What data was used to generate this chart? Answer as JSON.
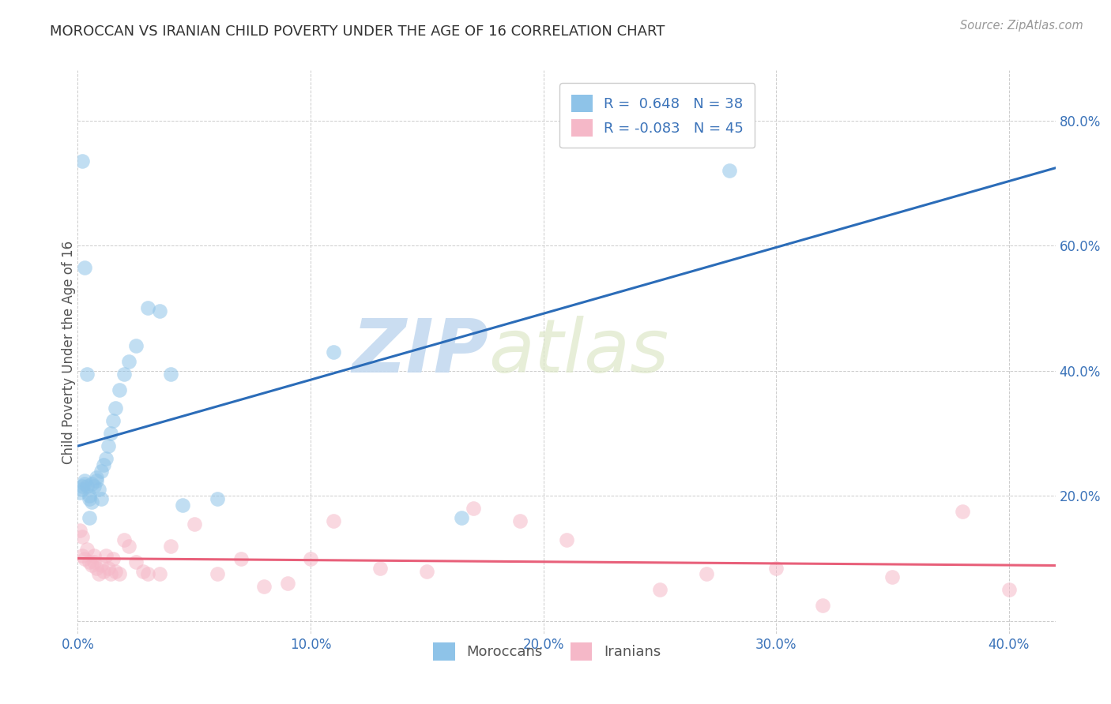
{
  "title": "MOROCCAN VS IRANIAN CHILD POVERTY UNDER THE AGE OF 16 CORRELATION CHART",
  "source": "Source: ZipAtlas.com",
  "ylabel": "Child Poverty Under the Age of 16",
  "xlim": [
    0.0,
    0.42
  ],
  "ylim": [
    -0.02,
    0.88
  ],
  "x_ticks": [
    0.0,
    0.1,
    0.2,
    0.3,
    0.4
  ],
  "x_tick_labels": [
    "0.0%",
    "10.0%",
    "20.0%",
    "30.0%",
    "40.0%"
  ],
  "y_ticks": [
    0.0,
    0.2,
    0.4,
    0.6,
    0.8
  ],
  "y_tick_labels": [
    "",
    "20.0%",
    "40.0%",
    "60.0%",
    "80.0%"
  ],
  "moroccan_R": 0.648,
  "moroccan_N": 38,
  "iranian_R": -0.083,
  "iranian_N": 45,
  "moroccan_color": "#8ec3e8",
  "iranian_color": "#f5b8c8",
  "moroccan_line_color": "#2b6cb8",
  "iranian_line_color": "#e8607a",
  "moroccan_x": [
    0.001,
    0.002,
    0.002,
    0.003,
    0.003,
    0.004,
    0.005,
    0.005,
    0.006,
    0.006,
    0.007,
    0.008,
    0.008,
    0.009,
    0.01,
    0.01,
    0.011,
    0.012,
    0.013,
    0.014,
    0.015,
    0.016,
    0.018,
    0.02,
    0.022,
    0.025,
    0.03,
    0.035,
    0.04,
    0.045,
    0.002,
    0.003,
    0.004,
    0.005,
    0.28,
    0.11,
    0.165,
    0.06
  ],
  "moroccan_y": [
    0.205,
    0.215,
    0.21,
    0.225,
    0.22,
    0.215,
    0.2,
    0.195,
    0.19,
    0.22,
    0.215,
    0.23,
    0.225,
    0.21,
    0.24,
    0.195,
    0.25,
    0.26,
    0.28,
    0.3,
    0.32,
    0.34,
    0.37,
    0.395,
    0.415,
    0.44,
    0.5,
    0.495,
    0.395,
    0.185,
    0.735,
    0.565,
    0.395,
    0.165,
    0.72,
    0.43,
    0.165,
    0.195
  ],
  "iranian_x": [
    0.001,
    0.002,
    0.002,
    0.003,
    0.004,
    0.005,
    0.006,
    0.007,
    0.007,
    0.008,
    0.009,
    0.01,
    0.011,
    0.012,
    0.013,
    0.014,
    0.015,
    0.016,
    0.018,
    0.02,
    0.022,
    0.025,
    0.028,
    0.03,
    0.035,
    0.04,
    0.05,
    0.06,
    0.07,
    0.08,
    0.09,
    0.1,
    0.11,
    0.13,
    0.15,
    0.17,
    0.19,
    0.21,
    0.25,
    0.27,
    0.3,
    0.32,
    0.35,
    0.38,
    0.4
  ],
  "iranian_y": [
    0.145,
    0.135,
    0.105,
    0.1,
    0.115,
    0.095,
    0.09,
    0.095,
    0.105,
    0.085,
    0.075,
    0.09,
    0.08,
    0.105,
    0.085,
    0.075,
    0.1,
    0.08,
    0.075,
    0.13,
    0.12,
    0.095,
    0.08,
    0.075,
    0.075,
    0.12,
    0.155,
    0.075,
    0.1,
    0.055,
    0.06,
    0.1,
    0.16,
    0.085,
    0.08,
    0.18,
    0.16,
    0.13,
    0.05,
    0.075,
    0.085,
    0.025,
    0.07,
    0.175,
    0.05
  ],
  "watermark_zip": "ZIP",
  "watermark_atlas": "atlas",
  "background_color": "#ffffff",
  "grid_color": "#cccccc"
}
